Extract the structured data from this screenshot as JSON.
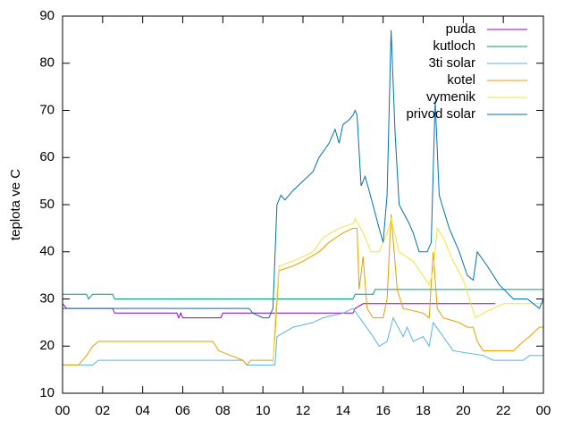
{
  "chart_data": {
    "type": "line",
    "ylabel": "teplota ve C",
    "xlim": [
      0,
      24
    ],
    "xticks": [
      {
        "value": 0,
        "label": "00"
      },
      {
        "value": 2,
        "label": "02"
      },
      {
        "value": 4,
        "label": "04"
      },
      {
        "value": 6,
        "label": "06"
      },
      {
        "value": 8,
        "label": "08"
      },
      10,
      12,
      14,
      16,
      18,
      20,
      22,
      {
        "value": 24,
        "label": "00"
      }
    ],
    "ylim": [
      10,
      90
    ],
    "yticks": [
      10,
      20,
      30,
      40,
      50,
      60,
      70,
      80,
      90
    ],
    "legend": "top-right",
    "series": [
      {
        "name": "puda",
        "color": "#9400d3",
        "x": [
          0,
          0.2,
          2.5,
          2.6,
          5.7,
          5.8,
          5.9,
          6.0,
          7.9,
          8.0,
          14.5,
          14.6,
          15.0,
          21.6
        ],
        "values": [
          29,
          28,
          28,
          27,
          27,
          26,
          27,
          26,
          26,
          27,
          27,
          28,
          29,
          29
        ]
      },
      {
        "name": "kutloch",
        "color": "#009e73",
        "x": [
          0,
          1.2,
          1.3,
          1.5,
          2.5,
          2.6,
          14.5,
          14.6,
          15.5,
          15.6,
          24
        ],
        "values": [
          31,
          31,
          30,
          31,
          31,
          30,
          30,
          31,
          31,
          32,
          32
        ]
      },
      {
        "name": "3ti solar",
        "color": "#56b4e9",
        "x": [
          0,
          1.5,
          1.8,
          9.0,
          9.2,
          10.6,
          10.7,
          11.5,
          12.5,
          13.0,
          14.0,
          14.5,
          15.0,
          15.5,
          15.8,
          16.2,
          16.5,
          17.0,
          17.2,
          17.5,
          18.0,
          18.3,
          18.5,
          19.0,
          19.5,
          21.0,
          21.5,
          23.0,
          23.3,
          24
        ],
        "values": [
          16,
          16,
          17,
          17,
          16,
          16,
          22,
          24,
          25,
          26,
          27,
          28,
          25,
          22,
          20,
          21,
          26,
          22,
          24,
          21,
          22,
          20,
          25,
          22,
          19,
          18,
          17,
          17,
          18,
          18
        ]
      },
      {
        "name": "kotel",
        "color": "#e69f00",
        "x": [
          0,
          0.8,
          1.2,
          1.5,
          1.8,
          7.5,
          7.8,
          9.0,
          9.2,
          9.4,
          10.5,
          10.6,
          10.8,
          11.5,
          12.0,
          12.8,
          13.3,
          14.0,
          14.5,
          14.7,
          14.8,
          15.0,
          15.2,
          15.5,
          16.0,
          16.2,
          16.4,
          16.7,
          17.0,
          18.0,
          18.3,
          18.5,
          18.7,
          19.0,
          19.8,
          20.2,
          20.5,
          20.7,
          21.0,
          22.5,
          23.0,
          23.3,
          23.8,
          24
        ],
        "values": [
          16,
          16,
          18,
          20,
          21,
          21,
          19,
          17,
          16,
          17,
          17,
          22,
          36,
          37,
          38,
          40,
          42,
          44,
          45,
          45,
          32,
          39,
          28,
          26,
          26,
          30,
          48,
          32,
          28,
          27,
          26,
          40,
          28,
          26,
          25,
          24,
          24,
          21,
          19,
          19,
          21,
          22,
          24,
          24
        ]
      },
      {
        "name": "vymenik",
        "color": "#f0e442",
        "x": [
          10.5,
          10.6,
          10.8,
          11.5,
          12.5,
          13.0,
          13.8,
          14.5,
          14.6,
          15.0,
          15.4,
          15.8,
          16.2,
          16.4,
          16.8,
          17.5,
          18.3,
          18.5,
          18.7,
          19.0,
          19.5,
          20.0,
          20.3,
          20.6,
          21.0,
          22.0,
          24
        ],
        "values": [
          16,
          25,
          37,
          38,
          40,
          43,
          45,
          46,
          47,
          44,
          40,
          40,
          44,
          47,
          40,
          38,
          33,
          36,
          45,
          43,
          38,
          34,
          30,
          26,
          27,
          29,
          29
        ]
      },
      {
        "name": "privod solar",
        "color": "#0072b2",
        "x": [
          0,
          9.3,
          9.5,
          10.0,
          10.3,
          10.5,
          10.7,
          10.9,
          11.1,
          11.5,
          12.0,
          12.5,
          12.8,
          13.3,
          13.6,
          13.8,
          14.0,
          14.3,
          14.5,
          14.6,
          14.7,
          14.9,
          15.1,
          15.3,
          15.8,
          16.0,
          16.2,
          16.4,
          16.6,
          16.8,
          17.3,
          17.5,
          17.8,
          18.2,
          18.4,
          18.6,
          18.8,
          19.3,
          19.8,
          20.2,
          20.5,
          20.7,
          21.2,
          21.8,
          22.5,
          23.2,
          23.5,
          23.8,
          24
        ],
        "values": [
          28,
          28,
          27,
          26,
          26,
          28,
          50,
          52,
          51,
          53,
          55,
          57,
          60,
          63,
          66,
          63,
          67,
          68,
          69,
          70,
          69,
          54,
          56,
          53,
          45,
          42,
          52,
          87,
          65,
          50,
          46,
          44,
          40,
          40,
          42,
          72,
          52,
          45,
          40,
          35,
          34,
          40,
          37,
          33,
          30,
          30,
          29,
          28,
          30
        ]
      }
    ]
  }
}
